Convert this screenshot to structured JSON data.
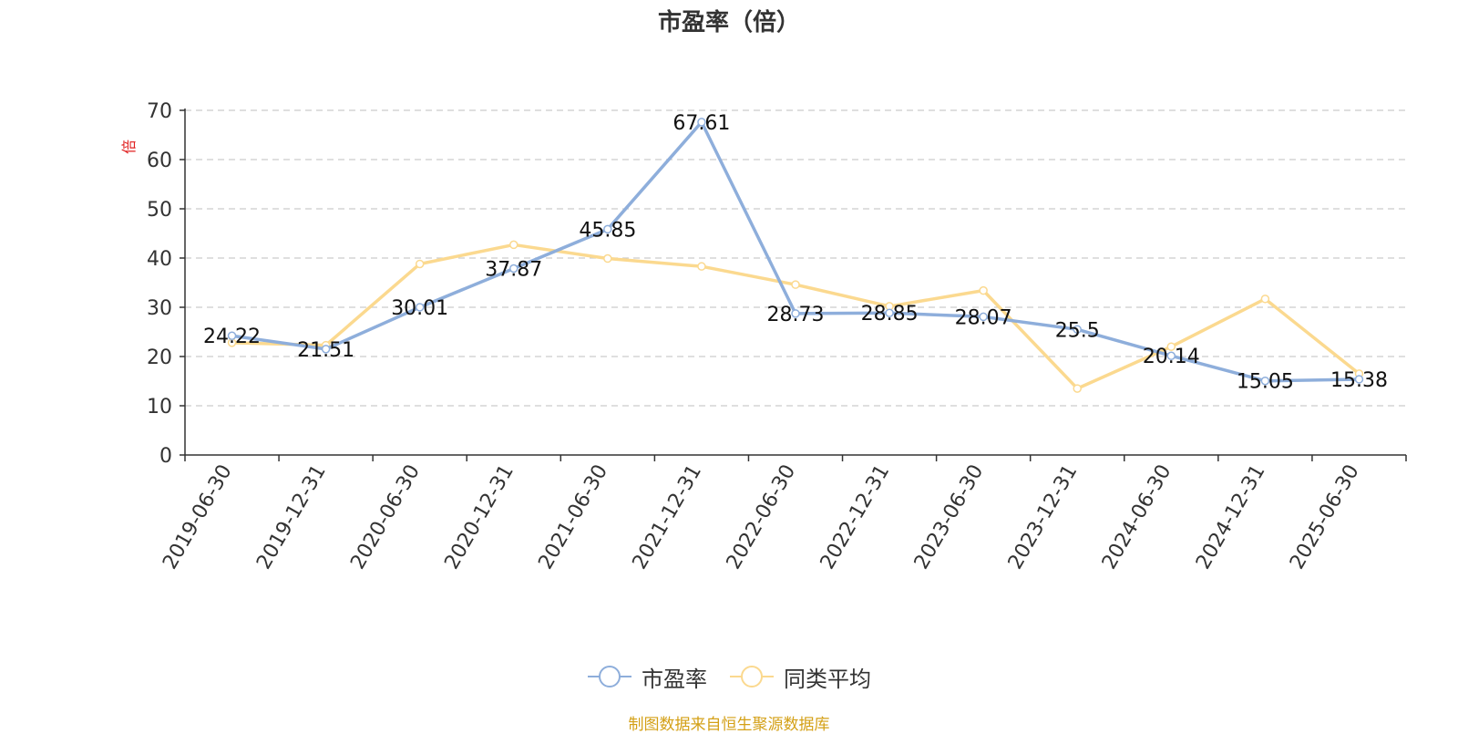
{
  "title": "市盈率（倍）",
  "source": "制图数据来自恒生聚源数据库",
  "colors": {
    "series1": "#8eaedb",
    "series2": "#fbd98f",
    "axis": "#333333",
    "grid": "#cccccc",
    "yunit": "#e02020",
    "source": "#d4a017"
  },
  "chart_data": {
    "type": "line",
    "title": "市盈率（倍）",
    "ylabel": "倍",
    "ylim": [
      0,
      70
    ],
    "yticks": [
      0,
      10,
      20,
      30,
      40,
      50,
      60,
      70
    ],
    "grid": true,
    "legend_position": "bottom",
    "categories": [
      "2019-06-30",
      "2019-12-31",
      "2020-06-30",
      "2020-12-31",
      "2021-06-30",
      "2021-12-31",
      "2022-06-30",
      "2022-12-31",
      "2023-06-30",
      "2023-12-31",
      "2024-06-30",
      "2024-12-31",
      "2025-06-30"
    ],
    "series": [
      {
        "name": "市盈率",
        "values": [
          24.22,
          21.51,
          30.01,
          37.87,
          45.85,
          67.61,
          28.73,
          28.85,
          28.07,
          25.5,
          20.14,
          15.05,
          15.38
        ],
        "labels": [
          "24.22",
          "21.51",
          "30.01",
          "37.87",
          "45.85",
          "67.61",
          "28.73",
          "28.85",
          "28.07",
          "25.5",
          "20.14",
          "15.05",
          "15.38"
        ]
      },
      {
        "name": "同类平均",
        "values": [
          22.8,
          22.3,
          38.8,
          42.7,
          39.9,
          38.3,
          34.6,
          30.2,
          33.4,
          13.5,
          22.0,
          31.7,
          16.5
        ]
      }
    ]
  }
}
